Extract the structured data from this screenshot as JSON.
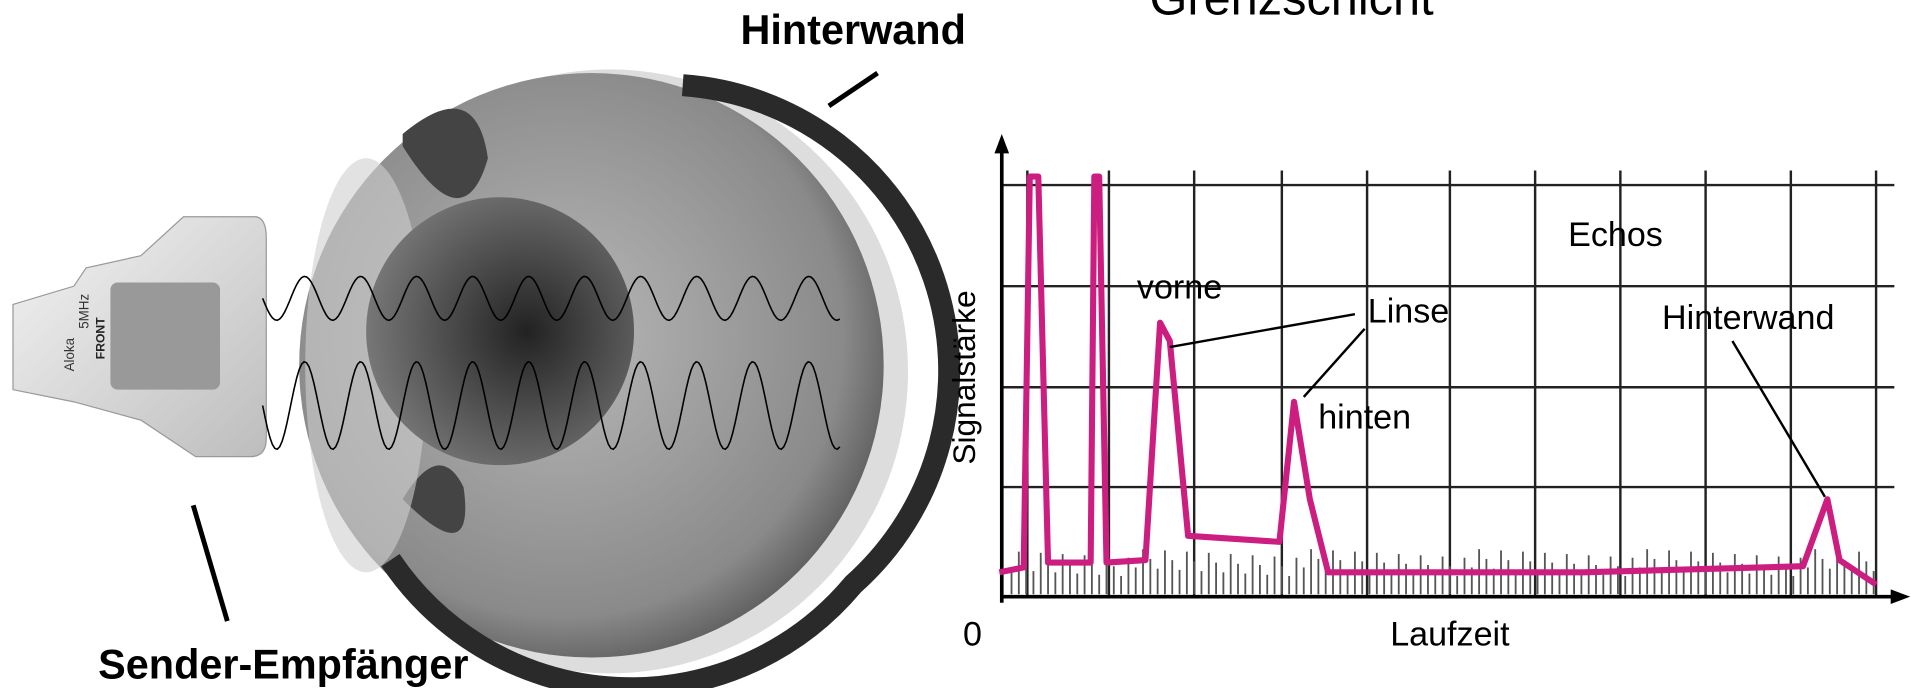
{
  "labels": {
    "top": "Grenzschicht",
    "back_wall": "Hinterwand",
    "transducer": "Sender-Empfänger"
  },
  "probe": {
    "brand": "Aloka",
    "frequency": "5MHz",
    "front": "FRONT"
  },
  "graph": {
    "y_axis": "Signalstärke",
    "x_axis": "Laufzeit",
    "origin": "0",
    "title": "Echos",
    "annotations": [
      "vorne",
      "Linse",
      "hinten",
      "Hinterwand"
    ]
  }
}
